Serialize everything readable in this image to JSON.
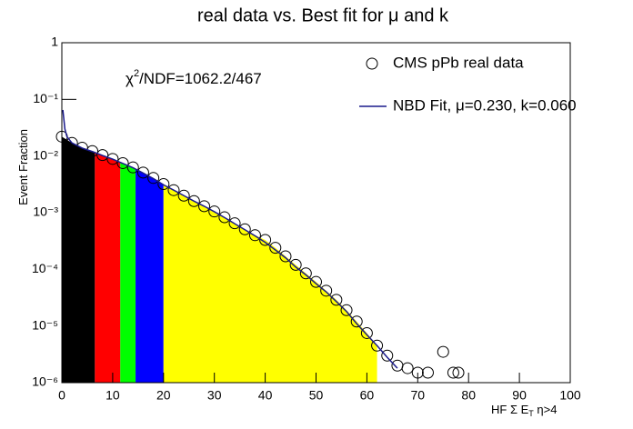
{
  "chart_data": {
    "type": "scatter",
    "title": "real data vs. Best fit for  μ and k",
    "annotation": {
      "symbol": "χ",
      "sup": "2",
      "text": "/NDF=1062.2/467"
    },
    "x_label": {
      "main": "HF Σ E",
      "sub": "T",
      "tail": " η>4"
    },
    "y_label": "Event Fraction",
    "log_y": true,
    "xlim": [
      0,
      100
    ],
    "xticks": [
      0,
      10,
      20,
      30,
      40,
      50,
      60,
      70,
      80,
      90,
      100
    ],
    "ylim": [
      1e-06,
      1
    ],
    "yticks": [
      {
        "value": 1e-06,
        "label": "10⁻⁶"
      },
      {
        "value": 1e-05,
        "label": "10⁻⁵"
      },
      {
        "value": 0.0001,
        "label": "10⁻⁴"
      },
      {
        "value": 0.001,
        "label": "10⁻³"
      },
      {
        "value": 0.01,
        "label": "10⁻²"
      },
      {
        "value": 0.1,
        "label": "10⁻¹"
      },
      1
    ],
    "bands": [
      {
        "from": 0,
        "to": 6.5,
        "color": "#000000"
      },
      {
        "from": 6.5,
        "to": 11.5,
        "color": "#ff0000"
      },
      {
        "from": 11.5,
        "to": 14.5,
        "color": "#00ff00"
      },
      {
        "from": 14.5,
        "to": 20,
        "color": "#0000ff"
      },
      {
        "from": 20,
        "to": 62,
        "color": "#ffff00"
      }
    ],
    "series": [
      {
        "name": "CMS pPb real data",
        "color": "#000000",
        "marker": "circle",
        "x": [
          0,
          2,
          4,
          6,
          8,
          10,
          12,
          14,
          16,
          18,
          20,
          22,
          24,
          26,
          28,
          30,
          32,
          34,
          36,
          38,
          40,
          42,
          44,
          46,
          48,
          50,
          52,
          54,
          56,
          58,
          60,
          62,
          64,
          66,
          68,
          70,
          72,
          75,
          77,
          78
        ],
        "values": [
          0.022,
          0.017,
          0.014,
          0.0122,
          0.0104,
          0.0089,
          0.0075,
          0.0063,
          0.0051,
          0.0041,
          0.0032,
          0.0025,
          0.002,
          0.0016,
          0.0013,
          0.00105,
          0.00083,
          0.00065,
          0.00051,
          0.0004,
          0.00033,
          0.00024,
          0.00017,
          0.00012,
          8.5e-05,
          6e-05,
          4.2e-05,
          2.9e-05,
          1.9e-05,
          1.2e-05,
          7.5e-06,
          4.5e-06,
          3e-06,
          2e-06,
          1.8e-06,
          1.5e-06,
          1.5e-06,
          3.5e-06,
          1.5e-06,
          1.5e-06
        ]
      },
      {
        "name": "NBD Fit, μ=0.230, k=0.060",
        "color": "#1a1a8c",
        "marker": "line",
        "x": [
          0.2,
          0.6,
          1,
          2,
          4,
          6,
          8,
          10,
          12,
          14,
          16,
          18,
          20,
          22,
          24,
          26,
          28,
          30,
          32,
          34,
          36,
          38,
          40,
          42,
          44,
          46,
          48,
          50,
          52,
          54,
          56,
          58,
          60,
          62,
          64,
          66
        ],
        "values": [
          0.065,
          0.03,
          0.022,
          0.017,
          0.0138,
          0.012,
          0.0102,
          0.0088,
          0.0074,
          0.0062,
          0.005,
          0.004,
          0.0031,
          0.0025,
          0.002,
          0.0016,
          0.0013,
          0.00104,
          0.00082,
          0.00064,
          0.0005,
          0.00039,
          0.0003,
          0.00022,
          0.00016,
          0.00011,
          8e-05,
          5.6e-05,
          4e-05,
          2.7e-05,
          1.8e-05,
          1.1e-05,
          7e-06,
          4.5e-06,
          2.8e-06,
          1.8e-06
        ]
      }
    ]
  }
}
